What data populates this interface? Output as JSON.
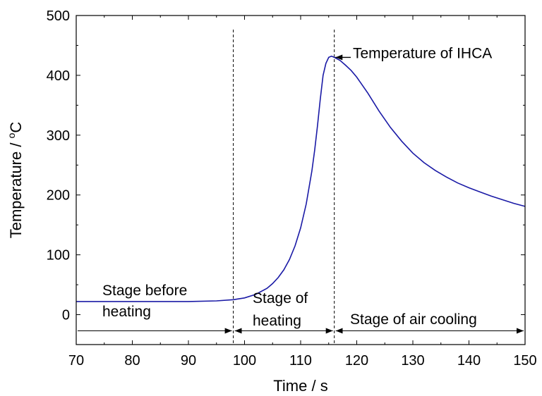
{
  "chart_data": {
    "type": "line",
    "title": "",
    "xlabel": "Time / s",
    "ylabel_main": "Temperature / ",
    "ylabel_sup": "o",
    "ylabel_tail": "C",
    "xlim": [
      70,
      150
    ],
    "ylim": [
      -50,
      500
    ],
    "x_ticks": [
      70,
      80,
      90,
      100,
      110,
      120,
      130,
      140,
      150
    ],
    "y_ticks": [
      0,
      100,
      200,
      300,
      400,
      500
    ],
    "grid": false,
    "line_color": "#1a1aa6",
    "series": [
      {
        "x": [
          70,
          75,
          80,
          85,
          90,
          95,
          98,
          100,
          102,
          104,
          105,
          106,
          107,
          108,
          109,
          110,
          111,
          112,
          112.5,
          113,
          113.5,
          114,
          114.5,
          115,
          115.5,
          116,
          117,
          118,
          119,
          120,
          122,
          124,
          126,
          128,
          130,
          132,
          134,
          136,
          138,
          140,
          142,
          144,
          146,
          148,
          150
        ],
        "y": [
          22,
          22,
          22,
          22,
          22,
          23,
          25,
          28,
          34,
          44,
          52,
          62,
          75,
          92,
          115,
          145,
          185,
          240,
          275,
          315,
          360,
          400,
          420,
          430,
          432,
          430,
          425,
          417,
          408,
          397,
          370,
          340,
          313,
          290,
          270,
          254,
          241,
          230,
          220,
          212,
          205,
          198,
          192,
          186,
          181
        ]
      }
    ],
    "vlines": [
      98,
      116
    ],
    "annotations": {
      "peak_label": "Temperature of IHCA",
      "stage1_line1": "Stage before",
      "stage1_line2": "heating",
      "stage2_line1": "Stage of",
      "stage2_line2": "heating",
      "stage3": "Stage of air cooling"
    },
    "stage_arrow_y": -27
  }
}
